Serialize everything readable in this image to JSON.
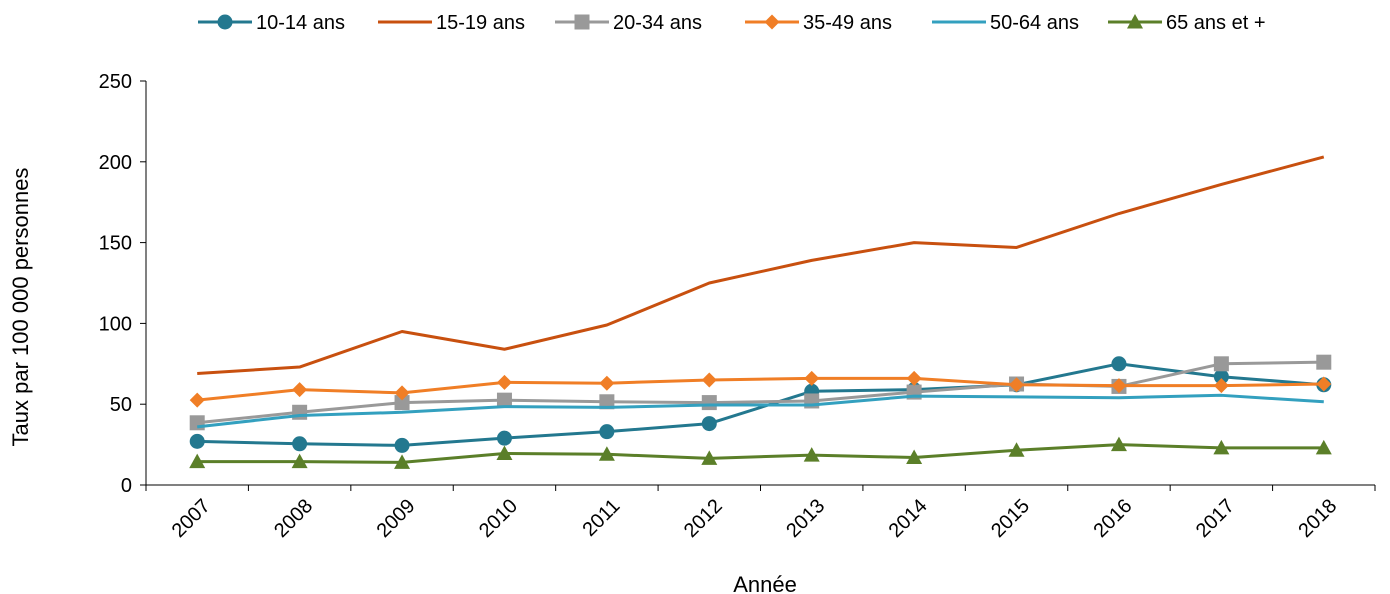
{
  "chart_data": {
    "type": "line",
    "xlabel": "Année",
    "ylabel": "Taux par 100 000 personnes",
    "categories": [
      "2007",
      "2008",
      "2009",
      "2010",
      "2011",
      "2012",
      "2013",
      "2014",
      "2015",
      "2016",
      "2017",
      "2018"
    ],
    "ylim": [
      0,
      250
    ],
    "yticks": [
      0,
      50,
      100,
      150,
      200,
      250
    ],
    "grid": false,
    "legend_position": "top",
    "series": [
      {
        "name": "10-14 ans",
        "color": "#23788f",
        "marker": "circle",
        "values": [
          27,
          25.5,
          24.5,
          29,
          33,
          38,
          58,
          59,
          62,
          75,
          67,
          62
        ]
      },
      {
        "name": "15-19 ans",
        "color": "#c8500f",
        "marker": "none",
        "values": [
          69,
          73,
          95,
          84,
          99,
          125,
          139,
          150,
          147,
          168,
          186,
          203
        ]
      },
      {
        "name": "20-34 ans",
        "color": "#999999",
        "marker": "square",
        "values": [
          38.5,
          45,
          51,
          52.5,
          51.5,
          51,
          52,
          57.5,
          62.5,
          61,
          75,
          76
        ]
      },
      {
        "name": "35-49 ans",
        "color": "#f07e26",
        "marker": "diamond",
        "values": [
          52.5,
          59,
          57,
          63.5,
          63,
          65,
          66,
          66,
          62,
          61.5,
          61.5,
          62.5
        ]
      },
      {
        "name": "50-64 ans",
        "color": "#33a0bf",
        "marker": "none",
        "values": [
          36,
          43,
          45,
          48.5,
          48,
          49.5,
          49.5,
          55,
          54.5,
          54,
          55.5,
          51.5
        ]
      },
      {
        "name": "65 ans et +",
        "color": "#5b7f29",
        "marker": "triangle",
        "values": [
          14.5,
          14.5,
          14,
          19.5,
          19,
          16.5,
          18.5,
          17,
          21.5,
          25,
          23,
          23
        ]
      }
    ]
  }
}
